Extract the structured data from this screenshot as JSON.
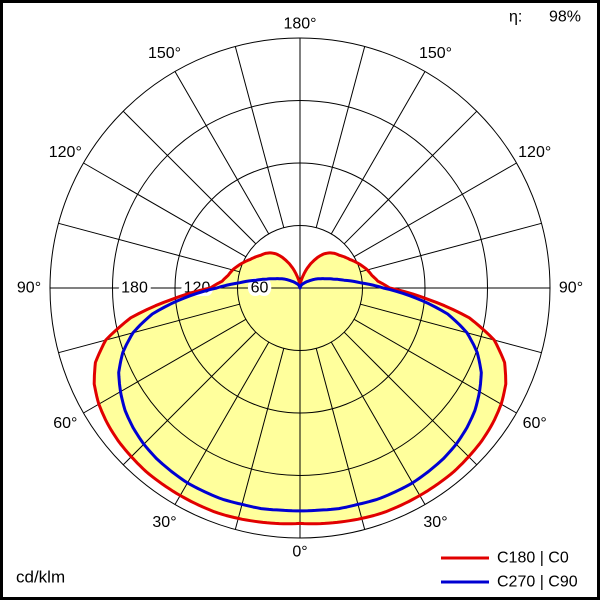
{
  "header": {
    "efficiency_label": "η:",
    "efficiency_value": "98%"
  },
  "footer": {
    "unit_label": "cd/klm"
  },
  "legend": {
    "items": [
      {
        "label": "C180 | C0",
        "color": "#e10000"
      },
      {
        "label": "C270 | C90",
        "color": "#0000d2"
      }
    ]
  },
  "chart_data": {
    "type": "polar",
    "subtype": "luminous-intensity-distribution",
    "unit": "cd/klm",
    "efficiency_percent": 98,
    "grid_color": "#000000",
    "fill_color": "#ffff9c",
    "radial_ticks": [
      60,
      120,
      180
    ],
    "radial_max": 240,
    "angle_grid_step_deg": 15,
    "angle_labels": [
      {
        "deg": 0,
        "label": "0°"
      },
      {
        "deg": 30,
        "label": "30°"
      },
      {
        "deg": 60,
        "label": "60°"
      },
      {
        "deg": 90,
        "label": "90°"
      },
      {
        "deg": 120,
        "label": "120°"
      },
      {
        "deg": 150,
        "label": "150°"
      },
      {
        "deg": 180,
        "label": "180°"
      }
    ],
    "series": [
      {
        "name": "C180 | C0",
        "color": "#e10000",
        "filled": true,
        "gamma_deg": [
          0,
          5,
          10,
          15,
          20,
          25,
          30,
          35,
          40,
          45,
          50,
          55,
          60,
          65,
          70,
          75,
          80,
          85,
          90,
          95,
          100,
          105,
          110,
          115,
          120,
          125,
          130,
          135,
          140,
          145,
          150,
          155,
          160,
          165,
          170,
          175,
          180
        ],
        "values": [
          226,
          227,
          228,
          229,
          230,
          230,
          230,
          230,
          230,
          229,
          228,
          226,
          223,
          218,
          209,
          193,
          165,
          123,
          86,
          75,
          70,
          67,
          63,
          59,
          55,
          52,
          49,
          47,
          44,
          40,
          34,
          27,
          20,
          13,
          8,
          4,
          2
        ]
      },
      {
        "name": "C270 | C90",
        "color": "#0000d2",
        "filled": false,
        "gamma_deg": [
          0,
          5,
          10,
          15,
          20,
          25,
          30,
          35,
          40,
          45,
          50,
          55,
          60,
          65,
          70,
          75,
          80,
          85,
          90,
          95,
          100,
          105,
          110,
          115,
          120,
          125,
          130,
          135,
          140,
          145,
          150,
          155,
          160,
          165,
          170,
          175,
          180
        ],
        "values": [
          214,
          214,
          215,
          215,
          216,
          216,
          216,
          215,
          214,
          212,
          209,
          205,
          199,
          192,
          181,
          166,
          144,
          112,
          80,
          58,
          43,
          33,
          26,
          21,
          17,
          13,
          10,
          8,
          6,
          5,
          4,
          3,
          2,
          1,
          1,
          0,
          0
        ]
      }
    ]
  }
}
